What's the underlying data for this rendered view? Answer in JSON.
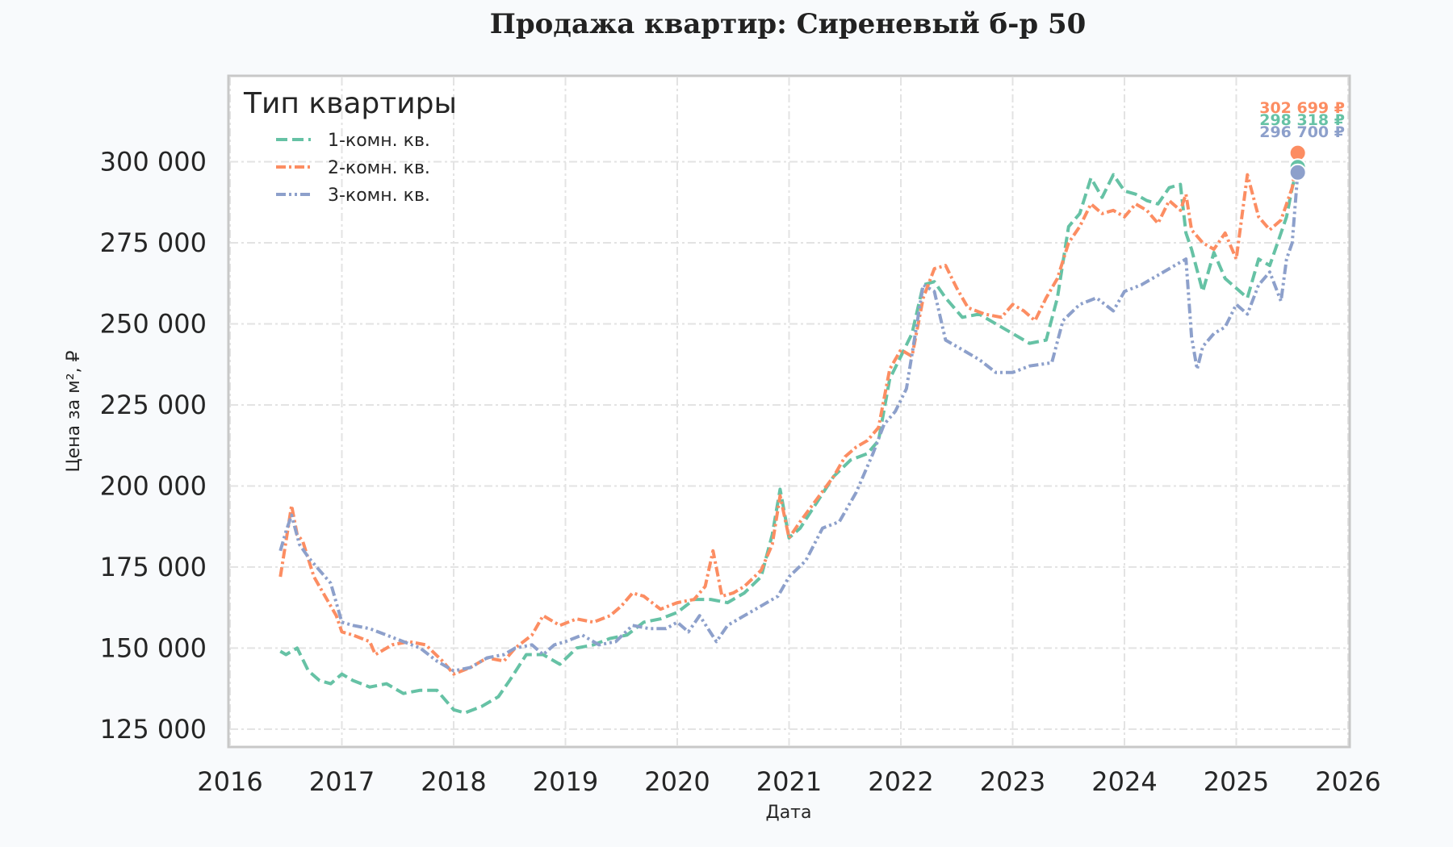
{
  "chart_data": {
    "type": "line",
    "title": "Продажа квартир: Сиреневый б-р 50",
    "xlabel": "Дата",
    "ylabel": "Цена за м², ₽",
    "xlim": [
      2016,
      2026
    ],
    "ylim": [
      120000,
      326000
    ],
    "x_ticks": [
      2016,
      2017,
      2018,
      2019,
      2020,
      2021,
      2022,
      2023,
      2024,
      2025,
      2026
    ],
    "x_tick_labels": [
      "2016",
      "2017",
      "2018",
      "2019",
      "2020",
      "2021",
      "2022",
      "2023",
      "2024",
      "2025",
      "2026"
    ],
    "y_ticks": [
      125000,
      150000,
      175000,
      200000,
      225000,
      250000,
      275000,
      300000
    ],
    "y_tick_labels": [
      "125 000",
      "150 000",
      "175 000",
      "200 000",
      "225 000",
      "250 000",
      "275 000",
      "300 000"
    ],
    "grid": true,
    "legend": {
      "title": "Тип квартиры",
      "position": "top-left"
    },
    "series": [
      {
        "name": "1-комн. кв.",
        "color": "#66c2a5",
        "dash": "dashed",
        "x": [
          2016.45,
          2016.5,
          2016.6,
          2016.7,
          2016.8,
          2016.9,
          2017.0,
          2017.1,
          2017.25,
          2017.4,
          2017.55,
          2017.7,
          2017.85,
          2018.0,
          2018.1,
          2018.25,
          2018.4,
          2018.5,
          2018.65,
          2018.8,
          2018.95,
          2019.1,
          2019.25,
          2019.4,
          2019.55,
          2019.7,
          2019.85,
          2020.0,
          2020.15,
          2020.3,
          2020.45,
          2020.6,
          2020.75,
          2020.85,
          2020.92,
          2021.0,
          2021.1,
          2021.25,
          2021.4,
          2021.55,
          2021.7,
          2021.8,
          2021.9,
          2022.0,
          2022.1,
          2022.2,
          2022.3,
          2022.4,
          2022.55,
          2022.7,
          2022.85,
          2023.0,
          2023.15,
          2023.3,
          2023.4,
          2023.5,
          2023.6,
          2023.7,
          2023.8,
          2023.9,
          2024.0,
          2024.1,
          2024.2,
          2024.3,
          2024.4,
          2024.5,
          2024.55,
          2024.6,
          2024.7,
          2024.8,
          2024.9,
          2025.0,
          2025.1,
          2025.2,
          2025.3,
          2025.4,
          2025.45,
          2025.5,
          2025.55
        ],
        "values": [
          149000,
          148000,
          150000,
          143000,
          140000,
          139000,
          142000,
          140000,
          138000,
          139000,
          136000,
          137000,
          137000,
          131000,
          130000,
          132000,
          135000,
          140000,
          148000,
          148000,
          145000,
          150000,
          151000,
          153000,
          154000,
          158000,
          159000,
          161000,
          165000,
          165000,
          164000,
          167000,
          172000,
          185000,
          199000,
          184000,
          187000,
          195000,
          203000,
          208000,
          210000,
          214000,
          233000,
          240000,
          247000,
          262000,
          263000,
          258000,
          252000,
          253000,
          250000,
          247000,
          244000,
          245000,
          258000,
          280000,
          284000,
          295000,
          289000,
          296000,
          291000,
          290000,
          288000,
          287000,
          292000,
          293000,
          278000,
          273000,
          260000,
          272000,
          264000,
          261000,
          258000,
          270000,
          268000,
          278000,
          283000,
          292000,
          298318
        ]
      },
      {
        "name": "2-комн. кв.",
        "color": "#fc8d62",
        "dash": "dash-dot",
        "x": [
          2016.45,
          2016.5,
          2016.55,
          2016.6,
          2016.65,
          2016.75,
          2016.85,
          2016.95,
          2017.0,
          2017.1,
          2017.25,
          2017.3,
          2017.45,
          2017.6,
          2017.75,
          2017.9,
          2018.0,
          2018.15,
          2018.3,
          2018.45,
          2018.55,
          2018.7,
          2018.8,
          2018.95,
          2019.1,
          2019.25,
          2019.4,
          2019.5,
          2019.6,
          2019.7,
          2019.85,
          2020.0,
          2020.15,
          2020.25,
          2020.32,
          2020.4,
          2020.5,
          2020.6,
          2020.75,
          2020.85,
          2020.92,
          2021.0,
          2021.1,
          2021.25,
          2021.4,
          2021.5,
          2021.6,
          2021.7,
          2021.8,
          2021.9,
          2022.0,
          2022.1,
          2022.2,
          2022.3,
          2022.4,
          2022.5,
          2022.6,
          2022.75,
          2022.9,
          2023.0,
          2023.1,
          2023.2,
          2023.3,
          2023.4,
          2023.5,
          2023.6,
          2023.7,
          2023.8,
          2023.9,
          2024.0,
          2024.1,
          2024.2,
          2024.3,
          2024.4,
          2024.5,
          2024.55,
          2024.6,
          2024.7,
          2024.8,
          2024.9,
          2025.0,
          2025.1,
          2025.2,
          2025.3,
          2025.4,
          2025.5,
          2025.55
        ],
        "values": [
          172000,
          183000,
          194000,
          185000,
          183000,
          172000,
          166000,
          160000,
          155000,
          154000,
          152000,
          148000,
          151000,
          152000,
          151000,
          146000,
          142000,
          144000,
          147000,
          146000,
          150000,
          154000,
          160000,
          157000,
          159000,
          158000,
          160000,
          163000,
          167000,
          166000,
          162000,
          164000,
          165000,
          169000,
          180000,
          166000,
          167000,
          169000,
          174000,
          182000,
          197000,
          184000,
          189000,
          196000,
          203000,
          209000,
          212000,
          214000,
          218000,
          236000,
          242000,
          240000,
          258000,
          267000,
          268000,
          261000,
          255000,
          253000,
          252000,
          256000,
          254000,
          251000,
          258000,
          264000,
          275000,
          280000,
          287000,
          284000,
          285000,
          283000,
          287000,
          285000,
          281000,
          288000,
          285000,
          290000,
          279000,
          275000,
          273000,
          278000,
          270000,
          296000,
          283000,
          279000,
          282000,
          292000,
          302699
        ]
      },
      {
        "name": "3-комн. кв.",
        "color": "#8da0cb",
        "dash": "dash-dot-dot",
        "x": [
          2016.45,
          2016.5,
          2016.55,
          2016.62,
          2016.7,
          2016.8,
          2016.9,
          2017.0,
          2017.1,
          2017.25,
          2017.4,
          2017.55,
          2017.7,
          2017.85,
          2018.0,
          2018.15,
          2018.3,
          2018.45,
          2018.55,
          2018.7,
          2018.8,
          2018.9,
          2019.0,
          2019.15,
          2019.3,
          2019.45,
          2019.6,
          2019.75,
          2019.9,
          2020.0,
          2020.1,
          2020.2,
          2020.35,
          2020.45,
          2020.6,
          2020.75,
          2020.9,
          2021.0,
          2021.15,
          2021.3,
          2021.45,
          2021.6,
          2021.75,
          2021.85,
          2021.95,
          2022.05,
          2022.2,
          2022.3,
          2022.4,
          2022.55,
          2022.7,
          2022.85,
          2023.0,
          2023.15,
          2023.35,
          2023.45,
          2023.6,
          2023.75,
          2023.9,
          2024.0,
          2024.15,
          2024.3,
          2024.45,
          2024.55,
          2024.6,
          2024.65,
          2024.7,
          2024.8,
          2024.9,
          2025.0,
          2025.1,
          2025.2,
          2025.3,
          2025.4,
          2025.45,
          2025.5,
          2025.55
        ],
        "values": [
          180000,
          186000,
          191000,
          182000,
          178000,
          174000,
          170000,
          158000,
          157000,
          156000,
          154000,
          152000,
          150000,
          146000,
          143000,
          144000,
          147000,
          148000,
          150000,
          151000,
          148000,
          151000,
          152000,
          154000,
          151000,
          152000,
          157000,
          156000,
          156000,
          158000,
          155000,
          160000,
          152000,
          157000,
          160000,
          163000,
          166000,
          172000,
          177000,
          187000,
          189000,
          198000,
          210000,
          219000,
          223000,
          230000,
          262000,
          260000,
          245000,
          242000,
          239000,
          235000,
          235000,
          237000,
          238000,
          251000,
          256000,
          258000,
          254000,
          260000,
          262000,
          265000,
          268000,
          270000,
          246000,
          236000,
          243000,
          247000,
          249000,
          256000,
          253000,
          262000,
          266000,
          257000,
          270000,
          275000,
          296700
        ]
      }
    ],
    "annotations": [
      {
        "series": "2-комн. кв.",
        "x": 2025.55,
        "y": 302699,
        "text": "302 699 ₽",
        "color": "#fc8d62"
      },
      {
        "series": "1-комн. кв.",
        "x": 2025.55,
        "y": 298318,
        "text": "298 318 ₽",
        "color": "#66c2a5"
      },
      {
        "series": "3-комн. кв.",
        "x": 2025.55,
        "y": 296700,
        "text": "296 700 ₽",
        "color": "#8da0cb"
      }
    ]
  }
}
